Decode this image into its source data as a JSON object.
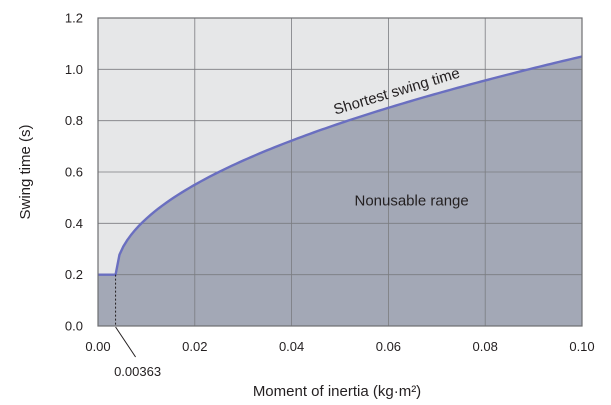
{
  "chart_data": {
    "type": "area",
    "xlabel": "Moment of inertia (kg·m²)",
    "ylabel": "Swing time (s)",
    "xlim": [
      0.0,
      0.1
    ],
    "ylim": [
      0.0,
      1.2
    ],
    "x_ticks": [
      0.0,
      0.02,
      0.04,
      0.06,
      0.08,
      0.1
    ],
    "x_tick_labels": [
      "0.00",
      "0.02",
      "0.04",
      "0.06",
      "0.08",
      "0.10"
    ],
    "y_ticks": [
      0.0,
      0.2,
      0.4,
      0.6,
      0.8,
      1.0,
      1.2
    ],
    "y_tick_labels": [
      "0.0",
      "0.2",
      "0.4",
      "0.6",
      "0.8",
      "1.0",
      "1.2"
    ],
    "grid": true,
    "series": [
      {
        "name": "Shortest swing time",
        "color": "#6a6fc0",
        "fill": "#a3a8b6",
        "points": [
          [
            0.0,
            0.2
          ],
          [
            0.00363,
            0.2
          ],
          [
            0.006,
            0.262
          ],
          [
            0.01,
            0.335
          ],
          [
            0.015,
            0.408
          ],
          [
            0.02,
            0.47
          ],
          [
            0.03,
            0.576
          ],
          [
            0.04,
            0.665
          ],
          [
            0.05,
            0.742
          ],
          [
            0.06,
            0.813
          ],
          [
            0.07,
            0.878
          ],
          [
            0.08,
            0.939
          ],
          [
            0.09,
            0.996
          ],
          [
            0.1,
            1.05
          ]
        ]
      }
    ],
    "annotations": [
      {
        "text": "Nonusable range",
        "x": 0.0648,
        "y": 0.47
      },
      {
        "text": "0.00363",
        "x": 0.00363,
        "y": 0.2
      }
    ],
    "background_color": "#e6e7e8",
    "axis_color": "#6d6e71"
  }
}
